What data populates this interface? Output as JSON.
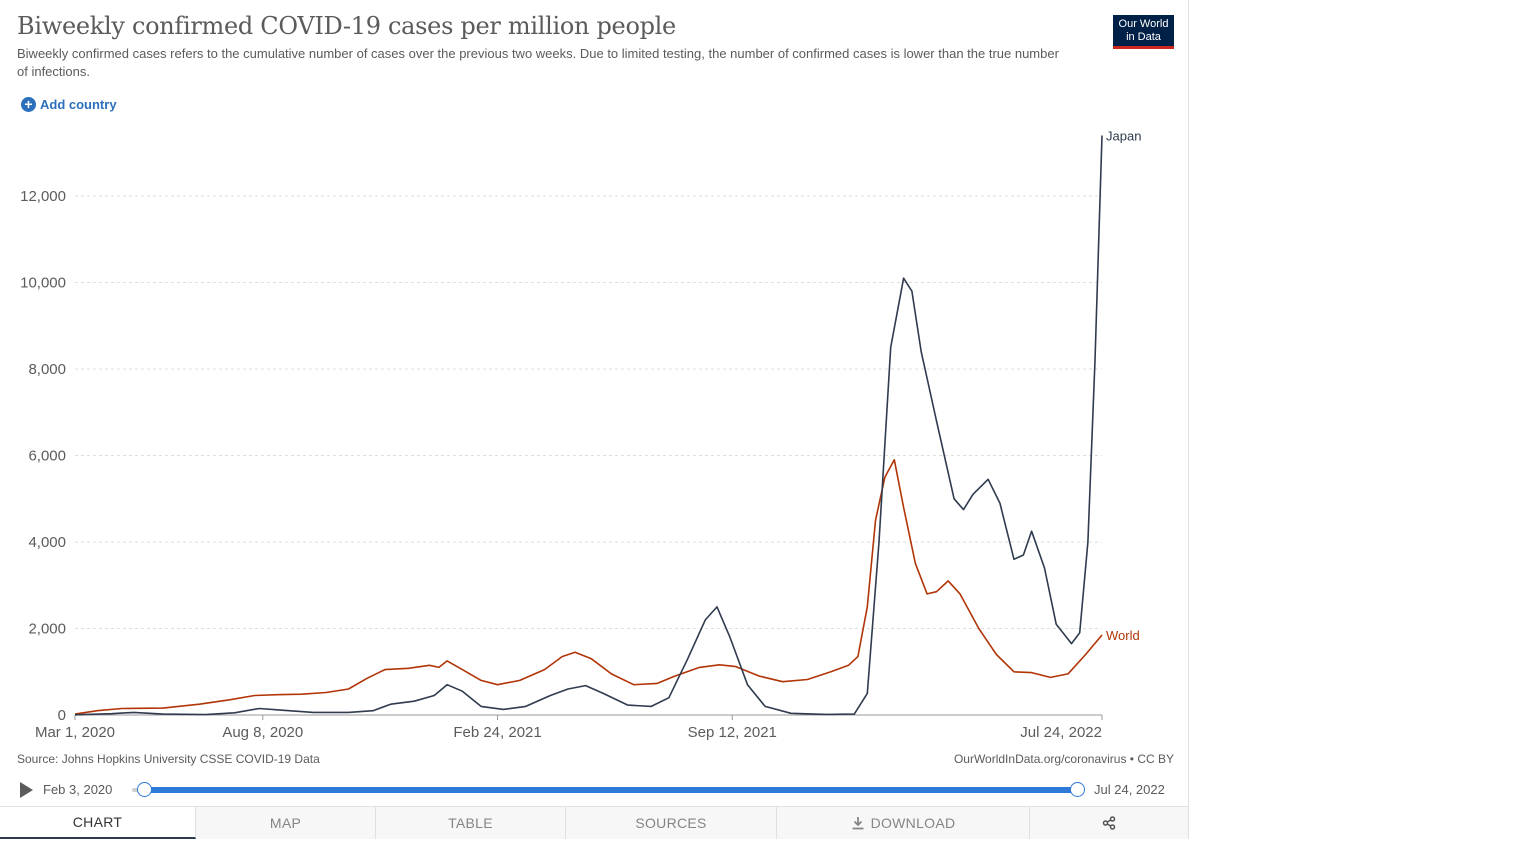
{
  "header": {
    "title": "Biweekly confirmed COVID-19 cases per million people",
    "subtitle": "Biweekly confirmed cases refers to the cumulative number of cases over the previous two weeks. Due to limited testing, the number of confirmed cases is lower than the true number of infections.",
    "logo_line1": "Our World",
    "logo_line2": "in Data",
    "add_country_label": "Add country"
  },
  "chart_data": {
    "type": "line",
    "title": "Biweekly confirmed COVID-19 cases per million people",
    "xlabel": "",
    "ylabel": "",
    "x_range": [
      "2020-03-01",
      "2022-07-24"
    ],
    "ylim": [
      0,
      13500
    ],
    "yticks": [
      0,
      2000,
      4000,
      6000,
      8000,
      10000,
      12000
    ],
    "ytick_labels": [
      "0",
      "2,000",
      "4,000",
      "6,000",
      "8,000",
      "10,000",
      "12,000"
    ],
    "xticks": [
      "2020-03-01",
      "2020-08-08",
      "2021-02-24",
      "2021-09-12",
      "2022-07-24"
    ],
    "xtick_labels": [
      "Mar 1, 2020",
      "Aug 8, 2020",
      "Feb 24, 2021",
      "Sep 12, 2021",
      "Jul 24, 2022"
    ],
    "grid": "horizontal dashed",
    "legend": "inline labels at line ends",
    "series": [
      {
        "name": "World",
        "color": "#b13507",
        "points": [
          [
            "2020-03-01",
            20
          ],
          [
            "2020-03-20",
            100
          ],
          [
            "2020-04-10",
            150
          ],
          [
            "2020-05-15",
            160
          ],
          [
            "2020-06-15",
            250
          ],
          [
            "2020-07-10",
            350
          ],
          [
            "2020-08-01",
            450
          ],
          [
            "2020-08-20",
            470
          ],
          [
            "2020-09-10",
            480
          ],
          [
            "2020-10-01",
            520
          ],
          [
            "2020-10-20",
            600
          ],
          [
            "2020-11-05",
            850
          ],
          [
            "2020-11-20",
            1050
          ],
          [
            "2020-12-10",
            1080
          ],
          [
            "2020-12-28",
            1150
          ],
          [
            "2021-01-05",
            1100
          ],
          [
            "2021-01-12",
            1250
          ],
          [
            "2021-01-25",
            1050
          ],
          [
            "2021-02-10",
            800
          ],
          [
            "2021-02-24",
            700
          ],
          [
            "2021-03-15",
            800
          ],
          [
            "2021-04-05",
            1050
          ],
          [
            "2021-04-20",
            1350
          ],
          [
            "2021-05-01",
            1450
          ],
          [
            "2021-05-15",
            1300
          ],
          [
            "2021-06-01",
            950
          ],
          [
            "2021-06-20",
            700
          ],
          [
            "2021-07-10",
            730
          ],
          [
            "2021-07-25",
            900
          ],
          [
            "2021-08-15",
            1100
          ],
          [
            "2021-09-01",
            1160
          ],
          [
            "2021-09-15",
            1120
          ],
          [
            "2021-10-05",
            900
          ],
          [
            "2021-10-25",
            770
          ],
          [
            "2021-11-15",
            820
          ],
          [
            "2021-12-05",
            1000
          ],
          [
            "2021-12-20",
            1150
          ],
          [
            "2021-12-28",
            1350
          ],
          [
            "2022-01-05",
            2500
          ],
          [
            "2022-01-12",
            4500
          ],
          [
            "2022-01-20",
            5500
          ],
          [
            "2022-01-28",
            5900
          ],
          [
            "2022-02-05",
            4800
          ],
          [
            "2022-02-15",
            3500
          ],
          [
            "2022-02-25",
            2800
          ],
          [
            "2022-03-05",
            2850
          ],
          [
            "2022-03-15",
            3100
          ],
          [
            "2022-03-25",
            2800
          ],
          [
            "2022-04-10",
            2000
          ],
          [
            "2022-04-25",
            1400
          ],
          [
            "2022-05-10",
            1000
          ],
          [
            "2022-05-25",
            980
          ],
          [
            "2022-06-10",
            870
          ],
          [
            "2022-06-25",
            950
          ],
          [
            "2022-07-10",
            1400
          ],
          [
            "2022-07-24",
            1850
          ]
        ]
      },
      {
        "name": "Japan",
        "color": "#2f3b4f",
        "points": [
          [
            "2020-03-01",
            5
          ],
          [
            "2020-04-01",
            30
          ],
          [
            "2020-04-20",
            60
          ],
          [
            "2020-05-15",
            20
          ],
          [
            "2020-06-20",
            10
          ],
          [
            "2020-07-15",
            50
          ],
          [
            "2020-08-05",
            150
          ],
          [
            "2020-08-20",
            120
          ],
          [
            "2020-09-20",
            60
          ],
          [
            "2020-10-20",
            60
          ],
          [
            "2020-11-10",
            100
          ],
          [
            "2020-11-25",
            250
          ],
          [
            "2020-12-15",
            320
          ],
          [
            "2021-01-01",
            450
          ],
          [
            "2021-01-12",
            700
          ],
          [
            "2021-01-25",
            550
          ],
          [
            "2021-02-10",
            200
          ],
          [
            "2021-03-01",
            130
          ],
          [
            "2021-03-20",
            200
          ],
          [
            "2021-04-10",
            450
          ],
          [
            "2021-04-25",
            600
          ],
          [
            "2021-05-10",
            680
          ],
          [
            "2021-05-25",
            500
          ],
          [
            "2021-06-15",
            230
          ],
          [
            "2021-07-05",
            200
          ],
          [
            "2021-07-20",
            400
          ],
          [
            "2021-08-05",
            1300
          ],
          [
            "2021-08-20",
            2200
          ],
          [
            "2021-08-30",
            2500
          ],
          [
            "2021-09-10",
            1800
          ],
          [
            "2021-09-25",
            700
          ],
          [
            "2021-10-10",
            200
          ],
          [
            "2021-11-01",
            40
          ],
          [
            "2021-12-01",
            15
          ],
          [
            "2021-12-25",
            20
          ],
          [
            "2022-01-05",
            500
          ],
          [
            "2022-01-15",
            4000
          ],
          [
            "2022-01-25",
            8500
          ],
          [
            "2022-02-05",
            10100
          ],
          [
            "2022-02-12",
            9800
          ],
          [
            "2022-02-20",
            8400
          ],
          [
            "2022-03-05",
            6800
          ],
          [
            "2022-03-20",
            5000
          ],
          [
            "2022-03-28",
            4750
          ],
          [
            "2022-04-05",
            5100
          ],
          [
            "2022-04-18",
            5450
          ],
          [
            "2022-04-28",
            4900
          ],
          [
            "2022-05-10",
            3600
          ],
          [
            "2022-05-18",
            3700
          ],
          [
            "2022-05-25",
            4250
          ],
          [
            "2022-06-05",
            3400
          ],
          [
            "2022-06-15",
            2100
          ],
          [
            "2022-06-28",
            1650
          ],
          [
            "2022-07-05",
            1900
          ],
          [
            "2022-07-12",
            4000
          ],
          [
            "2022-07-18",
            8200
          ],
          [
            "2022-07-24",
            13400
          ]
        ]
      }
    ]
  },
  "footer": {
    "source": "Source: Johns Hopkins University CSSE COVID-19 Data",
    "credit": "OurWorldInData.org/coronavirus • CC BY"
  },
  "timeline": {
    "start_label": "Feb 3, 2020",
    "end_label": "Jul 24, 2022",
    "start_value": "2020-02-03",
    "end_value": "2022-07-24",
    "range": [
      "2020-01-22",
      "2022-07-24"
    ]
  },
  "tabs": [
    {
      "label": "CHART",
      "active": true
    },
    {
      "label": "MAP"
    },
    {
      "label": "TABLE"
    },
    {
      "label": "SOURCES"
    },
    {
      "label": "DOWNLOAD"
    },
    {
      "label": ""
    }
  ]
}
